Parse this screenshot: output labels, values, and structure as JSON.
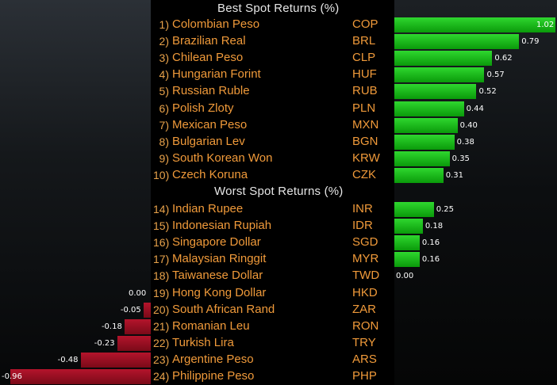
{
  "chart_data": {
    "type": "bar",
    "title": "Best Spot Returns (%)",
    "subtitle": "Worst Spot Returns (%)",
    "best": [
      {
        "rank": "1)",
        "name": "Colombian Peso",
        "code": "COP",
        "value": 1.02
      },
      {
        "rank": "2)",
        "name": "Brazilian Real",
        "code": "BRL",
        "value": 0.79
      },
      {
        "rank": "3)",
        "name": "Chilean Peso",
        "code": "CLP",
        "value": 0.62
      },
      {
        "rank": "4)",
        "name": "Hungarian Forint",
        "code": "HUF",
        "value": 0.57
      },
      {
        "rank": "5)",
        "name": "Russian Ruble",
        "code": "RUB",
        "value": 0.52
      },
      {
        "rank": "6)",
        "name": "Polish Zloty",
        "code": "PLN",
        "value": 0.44
      },
      {
        "rank": "7)",
        "name": "Mexican Peso",
        "code": "MXN",
        "value": 0.4
      },
      {
        "rank": "8)",
        "name": "Bulgarian Lev",
        "code": "BGN",
        "value": 0.38
      },
      {
        "rank": "9)",
        "name": "South Korean Won",
        "code": "KRW",
        "value": 0.35
      },
      {
        "rank": "10)",
        "name": "Czech Koruna",
        "code": "CZK",
        "value": 0.31
      }
    ],
    "worst": [
      {
        "rank": "14)",
        "name": "Indian Rupee",
        "code": "INR",
        "value": 0.25
      },
      {
        "rank": "15)",
        "name": "Indonesian Rupiah",
        "code": "IDR",
        "value": 0.18
      },
      {
        "rank": "16)",
        "name": "Singapore Dollar",
        "code": "SGD",
        "value": 0.16
      },
      {
        "rank": "17)",
        "name": "Malaysian Ringgit",
        "code": "MYR",
        "value": 0.16
      },
      {
        "rank": "18)",
        "name": "Taiwanese Dollar",
        "code": "TWD",
        "value": 0.0
      },
      {
        "rank": "19)",
        "name": "Hong Kong Dollar",
        "code": "HKD",
        "value": 0.0
      },
      {
        "rank": "20)",
        "name": "South African Rand",
        "code": "ZAR",
        "value": -0.05
      },
      {
        "rank": "21)",
        "name": "Romanian Leu",
        "code": "RON",
        "value": -0.18
      },
      {
        "rank": "22)",
        "name": "Turkish Lira",
        "code": "TRY",
        "value": -0.23
      },
      {
        "rank": "23)",
        "name": "Argentine Peso",
        "code": "ARS",
        "value": -0.48
      },
      {
        "rank": "24)",
        "name": "Philippine Peso",
        "code": "PHP",
        "value": -0.96
      }
    ],
    "value_labels": {
      "1.02": "1.02",
      "0.79": "0.79",
      "0.62": "0.62",
      "0.57": "0.57",
      "0.52": "0.52",
      "0.44": "0.44",
      "0.40": "0.40",
      "0.38": "0.38",
      "0.35": "0.35",
      "0.31": "0.31"
    },
    "colors": {
      "positive": "#1ec21e",
      "negative": "#a0102a",
      "text_orange": "#f09a3a",
      "heading": "#e6e6e6",
      "background": "#000000"
    },
    "grid": false,
    "legend": "none"
  }
}
